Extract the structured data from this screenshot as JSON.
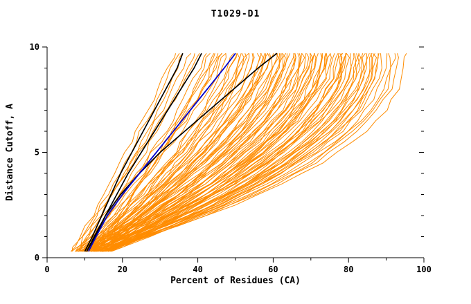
{
  "chart_data": {
    "type": "line",
    "title": "T1029-D1",
    "xlabel": "Percent of Residues (CA)",
    "ylabel": "Distance Cutoff, A",
    "xlim": [
      0,
      100
    ],
    "ylim": [
      0,
      10
    ],
    "x_major_ticks": [
      0,
      20,
      40,
      60,
      80,
      100
    ],
    "x_minor_ticks": [
      10,
      30,
      50,
      70,
      90
    ],
    "y_major_ticks": [
      0,
      5,
      10
    ],
    "y_minor_ticks": [
      1,
      2,
      3,
      4,
      6,
      7,
      8,
      9
    ],
    "axis_color": "#000000",
    "ensemble_color": "#FF8C00",
    "ensemble_line_width": 1,
    "jitter": 0.6,
    "top_cutoff": 9.7,
    "cutoffs": [
      0.3,
      0.5,
      1,
      1.5,
      2,
      2.5,
      3,
      3.5,
      4,
      4.5,
      5,
      5.5,
      6,
      6.5,
      7,
      7.5,
      8,
      8.5,
      9,
      9.5,
      9.7
    ],
    "ensemble_format": "[start_x_percent, end_x_percent, shape_q] ; x(y) = start + (end-start)*(1-(1-y/top_cutoff)^shape_q)",
    "ensemble": [
      [
        6,
        34,
        1.05
      ],
      [
        7,
        38,
        1.1
      ],
      [
        8,
        42,
        1.2
      ],
      [
        9,
        45,
        1.25
      ],
      [
        7,
        47,
        1.3
      ],
      [
        10,
        49,
        1.3
      ],
      [
        8,
        51,
        1.4
      ],
      [
        11,
        52,
        1.35
      ],
      [
        6,
        54,
        1.45
      ],
      [
        9,
        55,
        1.4
      ],
      [
        12,
        56,
        1.5
      ],
      [
        7,
        57,
        1.45
      ],
      [
        10,
        58,
        1.55
      ],
      [
        8,
        59,
        1.5
      ],
      [
        11,
        60,
        1.55
      ],
      [
        6,
        61,
        1.6
      ],
      [
        9,
        62,
        1.55
      ],
      [
        12,
        63,
        1.6
      ],
      [
        7,
        64,
        1.65
      ],
      [
        10,
        65,
        1.6
      ],
      [
        8,
        66,
        1.7
      ],
      [
        11,
        67,
        1.65
      ],
      [
        6,
        68,
        1.7
      ],
      [
        9,
        69,
        1.75
      ],
      [
        12,
        70,
        1.7
      ],
      [
        7,
        71,
        1.75
      ],
      [
        10,
        72,
        1.8
      ],
      [
        8,
        73,
        1.75
      ],
      [
        11,
        74,
        1.8
      ],
      [
        6,
        75,
        1.85
      ],
      [
        9,
        76,
        1.8
      ],
      [
        12,
        77,
        1.85
      ],
      [
        7,
        78,
        1.9
      ],
      [
        10,
        79,
        1.85
      ],
      [
        8,
        80,
        1.9
      ],
      [
        11,
        81,
        1.95
      ],
      [
        6,
        82,
        1.9
      ],
      [
        9,
        83,
        1.95
      ],
      [
        12,
        84,
        2.0
      ],
      [
        7,
        85,
        1.95
      ],
      [
        10,
        86,
        2.0
      ],
      [
        8,
        87,
        2.05
      ],
      [
        11,
        88,
        2.0
      ],
      [
        9,
        90,
        2.1
      ],
      [
        10,
        92,
        2.1
      ],
      [
        8,
        95,
        2.2
      ],
      [
        5,
        40,
        1.15
      ],
      [
        6,
        44,
        1.2
      ],
      [
        13,
        48,
        1.3
      ],
      [
        5,
        53,
        1.4
      ],
      [
        13,
        57,
        1.5
      ],
      [
        5,
        62,
        1.6
      ],
      [
        13,
        66,
        1.65
      ],
      [
        5,
        70,
        1.75
      ],
      [
        13,
        74,
        1.8
      ],
      [
        5,
        78,
        1.9
      ],
      [
        13,
        82,
        1.95
      ],
      [
        5,
        86,
        2.05
      ],
      [
        12,
        44,
        1.15
      ],
      [
        11,
        50,
        1.35
      ],
      [
        10,
        46,
        1.2
      ],
      [
        9,
        58,
        1.5
      ],
      [
        8,
        63,
        1.6
      ],
      [
        7,
        68,
        1.7
      ],
      [
        6,
        73,
        1.8
      ],
      [
        12,
        78,
        1.85
      ],
      [
        11,
        83,
        1.95
      ],
      [
        10,
        88,
        2.05
      ],
      [
        9,
        93,
        2.15
      ],
      [
        8,
        36,
        1.1
      ],
      [
        7,
        35,
        1.05
      ],
      [
        9,
        39,
        1.15
      ],
      [
        11,
        43,
        1.2
      ],
      [
        6,
        46,
        1.25
      ],
      [
        8,
        50,
        1.35
      ],
      [
        10,
        53,
        1.4
      ],
      [
        12,
        55,
        1.45
      ],
      [
        7,
        59,
        1.5
      ],
      [
        9,
        61,
        1.55
      ],
      [
        11,
        64,
        1.6
      ],
      [
        6,
        66,
        1.65
      ],
      [
        8,
        69,
        1.7
      ],
      [
        10,
        71,
        1.75
      ],
      [
        12,
        73,
        1.8
      ],
      [
        7,
        75,
        1.8
      ],
      [
        9,
        77,
        1.85
      ],
      [
        11,
        79,
        1.9
      ],
      [
        6,
        81,
        1.9
      ],
      [
        8,
        84,
        2.0
      ],
      [
        10,
        85,
        2.0
      ],
      [
        12,
        87,
        2.05
      ],
      [
        7,
        89,
        2.1
      ],
      [
        9,
        91,
        2.1
      ],
      [
        13,
        52,
        1.4
      ],
      [
        5,
        58,
        1.5
      ],
      [
        13,
        62,
        1.6
      ],
      [
        5,
        67,
        1.65
      ],
      [
        13,
        71,
        1.75
      ],
      [
        5,
        74,
        1.8
      ],
      [
        13,
        79,
        1.9
      ]
    ],
    "highlighted": [
      {
        "name": "model-black-1",
        "color": "#000000",
        "width": 1.7,
        "points": [
          [
            10,
            0.3
          ],
          [
            12,
            1
          ],
          [
            14.5,
            2
          ],
          [
            17,
            3
          ],
          [
            19.5,
            4
          ],
          [
            22.5,
            5
          ],
          [
            25.5,
            6
          ],
          [
            28.5,
            7
          ],
          [
            31.5,
            8
          ],
          [
            34.5,
            9
          ],
          [
            36,
            9.7
          ]
        ]
      },
      {
        "name": "model-black-2",
        "color": "#000000",
        "width": 1.7,
        "points": [
          [
            10.5,
            0.3
          ],
          [
            12.8,
            1
          ],
          [
            15.5,
            2
          ],
          [
            18.5,
            3
          ],
          [
            21.5,
            4
          ],
          [
            25,
            5
          ],
          [
            28.5,
            6
          ],
          [
            32,
            7
          ],
          [
            35.5,
            8
          ],
          [
            39,
            9
          ],
          [
            41,
            9.7
          ]
        ]
      },
      {
        "name": "model-black-3",
        "color": "#000000",
        "width": 1.7,
        "points": [
          [
            10.5,
            0.3
          ],
          [
            12.5,
            1
          ],
          [
            15.5,
            2
          ],
          [
            19.5,
            3
          ],
          [
            24.5,
            4
          ],
          [
            30,
            5
          ],
          [
            36.5,
            6
          ],
          [
            43,
            7
          ],
          [
            49.5,
            8
          ],
          [
            56,
            9
          ],
          [
            61,
            9.7
          ]
        ]
      },
      {
        "name": "model-blue",
        "color": "#0000CD",
        "width": 1.8,
        "points": [
          [
            11,
            0.3
          ],
          [
            13,
            1
          ],
          [
            16,
            2
          ],
          [
            20,
            3
          ],
          [
            24.5,
            4
          ],
          [
            29,
            5
          ],
          [
            33.5,
            6
          ],
          [
            38,
            7
          ],
          [
            42.5,
            8
          ],
          [
            47,
            9
          ],
          [
            50,
            9.7
          ]
        ]
      }
    ]
  }
}
